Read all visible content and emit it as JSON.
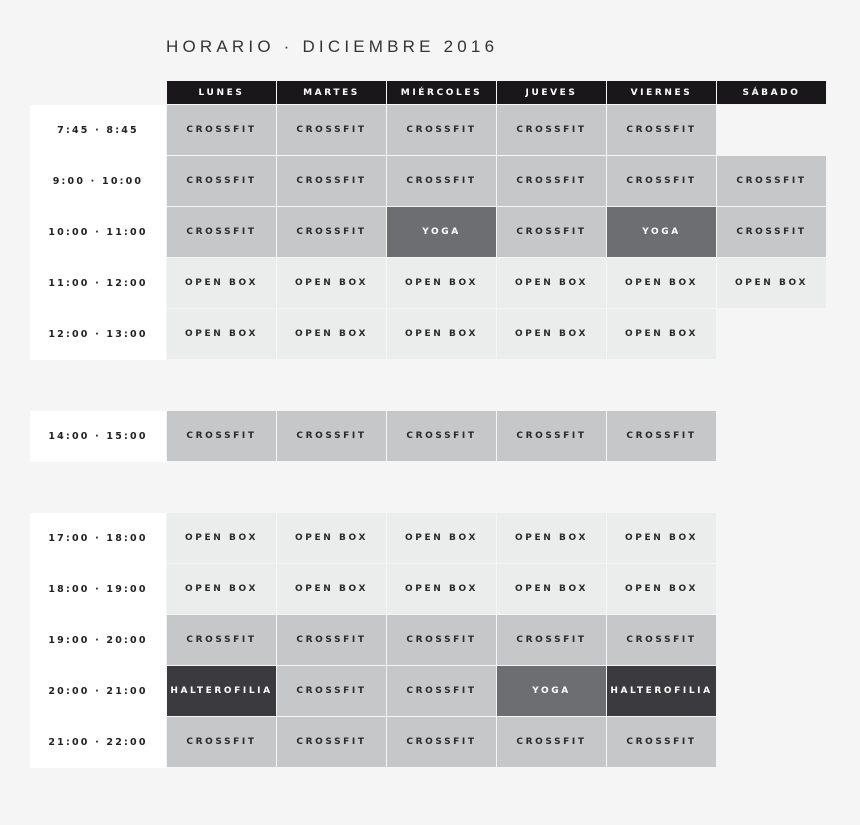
{
  "title": "HORARIO · DICIEMBRE 2016",
  "days": [
    "LUNES",
    "MARTES",
    "MIÉRCOLES",
    "JUEVES",
    "VIERNES",
    "SÁBADO"
  ],
  "class_colors": {
    "CROSSFIT": {
      "bg": "#c6c7c9",
      "fg": "#2a2a2a"
    },
    "OPEN BOX": {
      "bg": "#ebecec",
      "fg": "#2a2a2a"
    },
    "YOGA": {
      "bg": "#6d6e71",
      "fg": "#ffffff"
    },
    "HALTEROFILIA": {
      "bg": "#3b3a3e",
      "fg": "#ffffff"
    }
  },
  "groups": [
    {
      "rows": [
        {
          "time": "7:45 · 8:45",
          "cells": [
            "CROSSFIT",
            "CROSSFIT",
            "CROSSFIT",
            "CROSSFIT",
            "CROSSFIT",
            null
          ]
        },
        {
          "time": "9:00 · 10:00",
          "cells": [
            "CROSSFIT",
            "CROSSFIT",
            "CROSSFIT",
            "CROSSFIT",
            "CROSSFIT",
            "CROSSFIT"
          ]
        },
        {
          "time": "10:00 · 11:00",
          "cells": [
            "CROSSFIT",
            "CROSSFIT",
            "YOGA",
            "CROSSFIT",
            "YOGA",
            "CROSSFIT"
          ]
        },
        {
          "time": "11:00 · 12:00",
          "cells": [
            "OPEN BOX",
            "OPEN BOX",
            "OPEN BOX",
            "OPEN BOX",
            "OPEN BOX",
            "OPEN BOX"
          ]
        },
        {
          "time": "12:00 · 13:00",
          "cells": [
            "OPEN BOX",
            "OPEN BOX",
            "OPEN BOX",
            "OPEN BOX",
            "OPEN BOX",
            null
          ]
        }
      ]
    },
    {
      "rows": [
        {
          "time": "14:00 · 15:00",
          "cells": [
            "CROSSFIT",
            "CROSSFIT",
            "CROSSFIT",
            "CROSSFIT",
            "CROSSFIT",
            null
          ]
        }
      ]
    },
    {
      "rows": [
        {
          "time": "17:00 · 18:00",
          "cells": [
            "OPEN BOX",
            "OPEN BOX",
            "OPEN BOX",
            "OPEN BOX",
            "OPEN BOX",
            null
          ]
        },
        {
          "time": "18:00 · 19:00",
          "cells": [
            "OPEN BOX",
            "OPEN BOX",
            "OPEN BOX",
            "OPEN BOX",
            "OPEN BOX",
            null
          ]
        },
        {
          "time": "19:00 · 20:00",
          "cells": [
            "CROSSFIT",
            "CROSSFIT",
            "CROSSFIT",
            "CROSSFIT",
            "CROSSFIT",
            null
          ]
        },
        {
          "time": "20:00 · 21:00",
          "cells": [
            "HALTEROFILIA",
            "CROSSFIT",
            "CROSSFIT",
            "YOGA",
            "HALTEROFILIA",
            null
          ]
        },
        {
          "time": "21:00 · 22:00",
          "cells": [
            "CROSSFIT",
            "CROSSFIT",
            "CROSSFIT",
            "CROSSFIT",
            "CROSSFIT",
            null
          ]
        }
      ]
    }
  ]
}
